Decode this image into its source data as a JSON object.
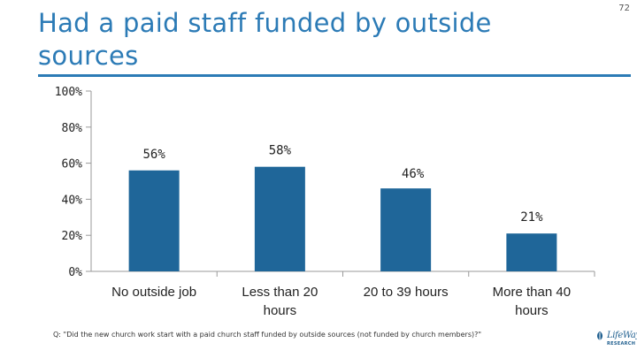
{
  "page": {
    "title": "Had a paid staff funded by outside sources",
    "page_number": "72",
    "footnote": "Q: \"Did the new church work start with a paid church staff funded by outside sources (not funded by church members)?\"",
    "logo_text": "LifeWay",
    "logo_subtext": "RESEARCH"
  },
  "chart_data": {
    "type": "bar",
    "title": "",
    "xlabel": "",
    "ylabel": "",
    "categories": [
      "No outside job",
      "Less than 20 hours",
      "20 to 39 hours",
      "More than 40 hours"
    ],
    "category_lines": [
      [
        "No outside job"
      ],
      [
        "Less than 20",
        "hours"
      ],
      [
        "20 to 39 hours"
      ],
      [
        "More than 40",
        "hours"
      ]
    ],
    "values": [
      56,
      58,
      46,
      21
    ],
    "value_labels": [
      "56%",
      "58%",
      "46%",
      "21%"
    ],
    "ylim": [
      0,
      100
    ],
    "yticks": [
      0,
      20,
      40,
      60,
      80,
      100
    ],
    "ytick_labels": [
      "0%",
      "20%",
      "40%",
      "60%",
      "80%",
      "100%"
    ],
    "bar_color": "#1f6699",
    "grid": false,
    "legend": "none"
  }
}
